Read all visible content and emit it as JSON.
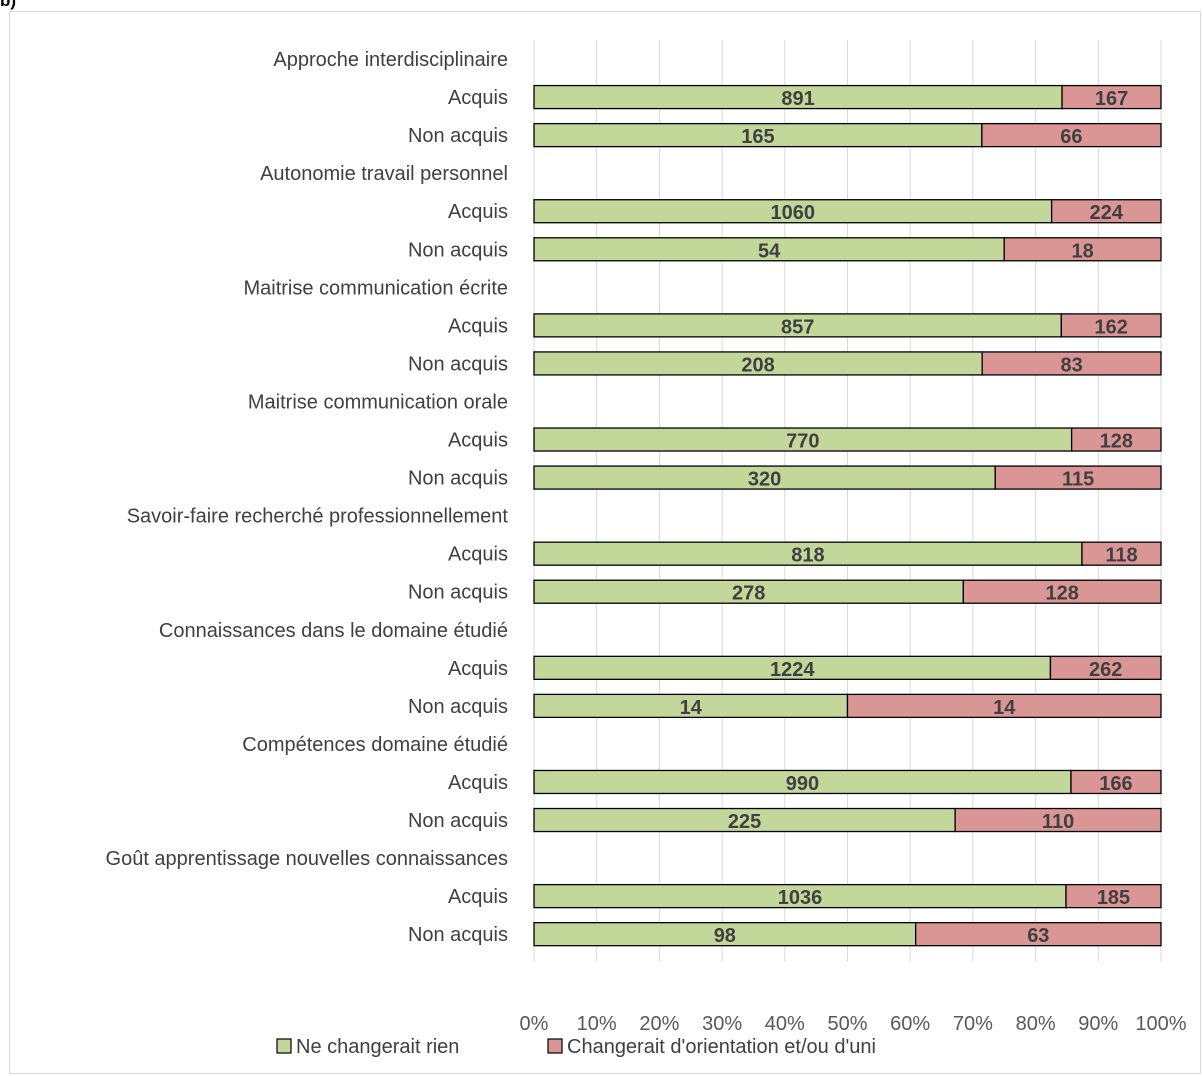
{
  "panel_label": "b)",
  "chart_data": {
    "type": "bar",
    "orientation": "horizontal",
    "stacking": "percent",
    "xlim": [
      0,
      100
    ],
    "x_ticks": [
      "0%",
      "10%",
      "20%",
      "30%",
      "40%",
      "50%",
      "60%",
      "70%",
      "80%",
      "90%",
      "100%"
    ],
    "grid": true,
    "legend_position": "bottom",
    "series": [
      {
        "name": "Ne changerait rien",
        "color": "#c4d79b"
      },
      {
        "name": "Changerait d'orientation et/ou d'uni",
        "color": "#da9694"
      }
    ],
    "groups": [
      {
        "label": "Approche interdisciplinaire",
        "rows": [
          {
            "label": "Acquis",
            "values": [
              891,
              167
            ]
          },
          {
            "label": "Non acquis",
            "values": [
              165,
              66
            ]
          }
        ]
      },
      {
        "label": "Autonomie travail personnel",
        "rows": [
          {
            "label": "Acquis",
            "values": [
              1060,
              224
            ]
          },
          {
            "label": "Non acquis",
            "values": [
              54,
              18
            ]
          }
        ]
      },
      {
        "label": "Maitrise communication écrite",
        "rows": [
          {
            "label": "Acquis",
            "values": [
              857,
              162
            ]
          },
          {
            "label": "Non acquis",
            "values": [
              208,
              83
            ]
          }
        ]
      },
      {
        "label": "Maitrise communication orale",
        "rows": [
          {
            "label": "Acquis",
            "values": [
              770,
              128
            ]
          },
          {
            "label": "Non acquis",
            "values": [
              320,
              115
            ]
          }
        ]
      },
      {
        "label": "Savoir-faire recherché professionnellement",
        "rows": [
          {
            "label": "Acquis",
            "values": [
              818,
              118
            ]
          },
          {
            "label": "Non acquis",
            "values": [
              278,
              128
            ]
          }
        ]
      },
      {
        "label": "Connaissances dans le domaine étudié",
        "rows": [
          {
            "label": "Acquis",
            "values": [
              1224,
              262
            ]
          },
          {
            "label": "Non acquis",
            "values": [
              14,
              14
            ]
          }
        ]
      },
      {
        "label": "Compétences domaine étudié",
        "rows": [
          {
            "label": "Acquis",
            "values": [
              990,
              166
            ]
          },
          {
            "label": "Non acquis",
            "values": [
              225,
              110
            ]
          }
        ]
      },
      {
        "label": "Goût apprentissage nouvelles connaissances",
        "rows": [
          {
            "label": "Acquis",
            "values": [
              1036,
              185
            ]
          },
          {
            "label": "Non acquis",
            "values": [
              98,
              63
            ]
          }
        ]
      }
    ]
  }
}
